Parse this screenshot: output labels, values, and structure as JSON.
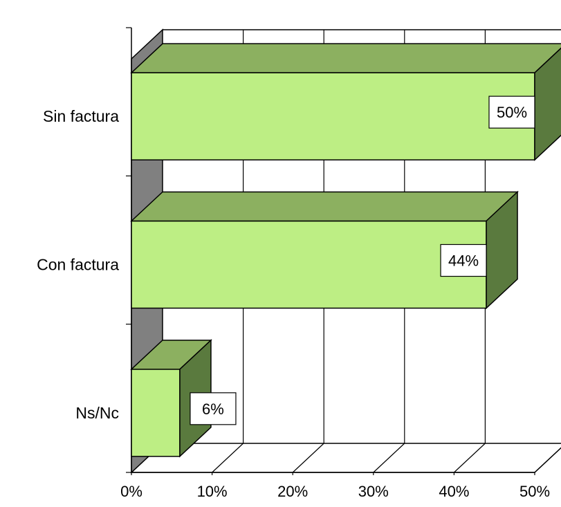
{
  "chart_data": {
    "type": "bar",
    "orientation": "horizontal",
    "three_d": true,
    "categories": [
      "Sin factura",
      "Con factura",
      "Ns/Nc"
    ],
    "values": [
      50,
      44,
      6
    ],
    "data_labels": [
      "50%",
      "44%",
      "6%"
    ],
    "xlim": [
      0,
      50
    ],
    "x_ticks": [
      0,
      10,
      20,
      30,
      40,
      50
    ],
    "x_tick_labels": [
      "0%",
      "10%",
      "20%",
      "30%",
      "40%",
      "50%"
    ],
    "grid": true,
    "legend": "none",
    "colors": {
      "bar_front": "#bdee84",
      "bar_top": "#8cb060",
      "bar_side": "#5a7a3e",
      "wall": "#808080",
      "edge": "#000000"
    }
  }
}
